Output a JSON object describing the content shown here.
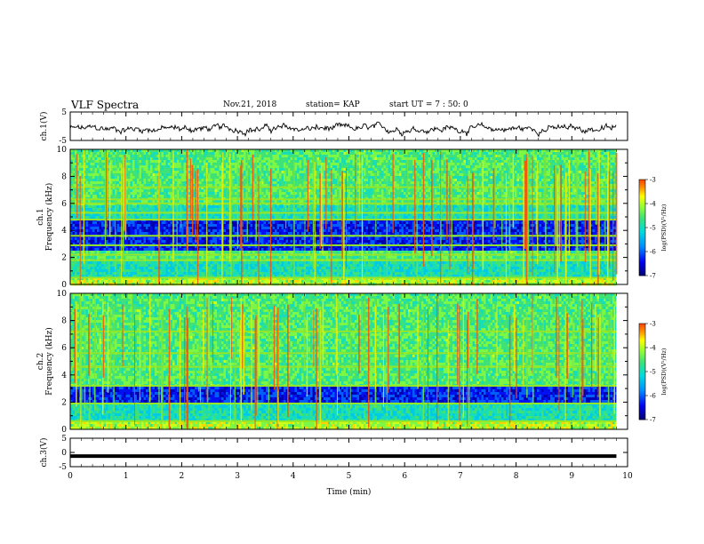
{
  "header": {
    "title": "VLF Spectra",
    "date": "Nov.21, 2018",
    "station": "station= KAP",
    "start": "start UT = 7 : 50: 0"
  },
  "colors": {
    "spectrogram_scale": [
      "#00006e",
      "#0000ff",
      "#0090ff",
      "#00e0e0",
      "#40e080",
      "#90ff30",
      "#ffff00",
      "#ff9000",
      "#ff2000",
      "#ffffff"
    ],
    "trace": "#000000"
  },
  "chart_data": [
    {
      "type": "line",
      "panel": "ch1-waveform",
      "ylabel": "ch.1(V)",
      "ylim": [
        -5,
        5
      ],
      "yticks": [
        5,
        -5
      ],
      "xlim": [
        0,
        10
      ],
      "note_values": "noisy waveform around -1 V with amplitude about ±2 V across 0–9.8 min"
    },
    {
      "type": "heatmap",
      "panel": "ch1-spectrogram",
      "ylabel": "ch.1 Frequency (kHz)",
      "ylim": [
        0,
        10
      ],
      "yticks": [
        0,
        2,
        4,
        6,
        8,
        10
      ],
      "xlim": [
        0,
        10
      ],
      "colorbar": {
        "label": "log(PSD)(V²/Hz)",
        "range": [
          -7,
          -3
        ],
        "ticks": [
          -3,
          -4,
          -5,
          -6,
          -7
        ]
      },
      "bands_kHz": [
        {
          "from": 0.0,
          "to": 0.5,
          "level": "high"
        },
        {
          "from": 0.5,
          "to": 1.8,
          "level": "mid"
        },
        {
          "from": 1.8,
          "to": 2.5,
          "level": "mid-high"
        },
        {
          "from": 2.5,
          "to": 4.8,
          "level": "low"
        },
        {
          "from": 4.8,
          "to": 5.8,
          "level": "mid"
        },
        {
          "from": 5.8,
          "to": 10.0,
          "level": "mid-high"
        }
      ],
      "horizontal_lines_kHz": [
        0.5,
        1.8,
        2.2,
        2.9,
        3.6,
        4.8,
        5.3,
        6.0,
        6.3,
        7.2
      ]
    },
    {
      "type": "heatmap",
      "panel": "ch2-spectrogram",
      "ylabel": "ch.2 Frequency (kHz)",
      "ylim": [
        0,
        10
      ],
      "yticks": [
        0,
        2,
        4,
        6,
        8,
        10
      ],
      "xlim": [
        0,
        10
      ],
      "colorbar": {
        "label": "log(PSD)(V²/Hz)",
        "range": [
          -7,
          -3
        ],
        "ticks": [
          -3,
          -4,
          -5,
          -6,
          -7
        ]
      },
      "bands_kHz": [
        {
          "from": 0.0,
          "to": 0.6,
          "level": "high"
        },
        {
          "from": 0.6,
          "to": 2.0,
          "level": "mid"
        },
        {
          "from": 2.0,
          "to": 3.2,
          "level": "low"
        },
        {
          "from": 3.2,
          "to": 10.0,
          "level": "mid-high"
        }
      ],
      "horizontal_lines_kHz": [
        0.6,
        1.9,
        3.2,
        4.6,
        5.6,
        7.2
      ]
    },
    {
      "type": "line",
      "panel": "ch3-waveform",
      "ylabel": "ch.3(V)",
      "ylim": [
        -5,
        5
      ],
      "yticks": [
        5,
        0,
        -5
      ],
      "xlim": [
        0,
        10
      ],
      "x": [
        0,
        9.8
      ],
      "y": [
        -1.3,
        -1.3
      ]
    }
  ],
  "xaxis": {
    "label": "Time (min)",
    "ticks": [
      "0",
      "1",
      "2",
      "3",
      "4",
      "5",
      "6",
      "7",
      "8",
      "9",
      "10"
    ]
  }
}
